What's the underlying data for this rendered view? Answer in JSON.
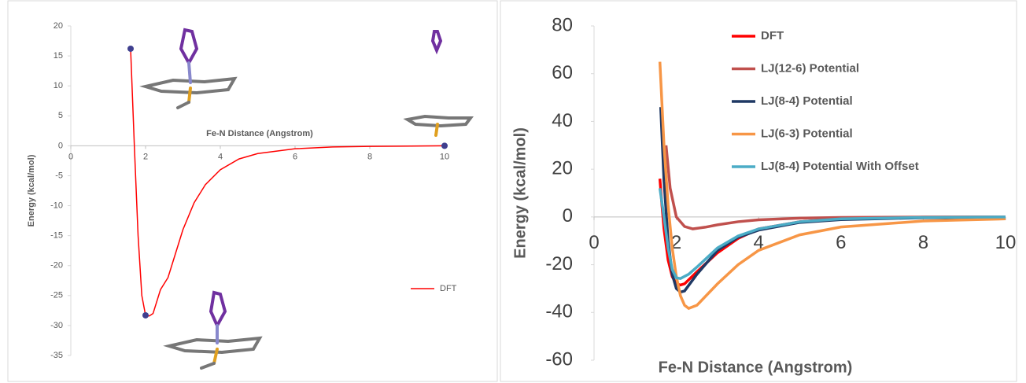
{
  "chart_data": [
    {
      "type": "line",
      "x_label": "Fe-N Distance (Angstrom)",
      "y_label": "Energy (kcal/mol)",
      "xlim": [
        0,
        10
      ],
      "ylim": [
        -35,
        20
      ],
      "xticks": [
        0,
        2,
        4,
        6,
        8,
        10
      ],
      "yticks": [
        -35,
        -30,
        -25,
        -20,
        -15,
        -10,
        -5,
        0,
        5,
        10,
        15,
        20
      ],
      "legend": "right",
      "series": [
        {
          "name": "DFT",
          "color": "#ff0000",
          "x": [
            1.6,
            1.7,
            1.8,
            1.9,
            2.0,
            2.1,
            2.2,
            2.4,
            2.6,
            2.8,
            3.0,
            3.3,
            3.6,
            4.0,
            4.5,
            5.0,
            6.0,
            7.0,
            8.0,
            10.0
          ],
          "values": [
            16.2,
            0,
            -15,
            -25,
            -28.3,
            -28.4,
            -28,
            -24,
            -22,
            -18,
            -14,
            -9.5,
            -6.5,
            -4,
            -2.2,
            -1.3,
            -0.5,
            -0.2,
            -0.1,
            0
          ]
        }
      ],
      "markers": {
        "color": "#3f3f8f",
        "x": [
          1.6,
          2.0,
          10.0
        ],
        "values": [
          16.2,
          -28.3,
          0
        ]
      }
    },
    {
      "type": "line",
      "x_label": "Fe-N Distance (Angstrom)",
      "y_label": "Energy (kcal/mol)",
      "xlim": [
        0,
        10
      ],
      "ylim": [
        -60,
        80
      ],
      "xticks": [
        0,
        2,
        4,
        6,
        8,
        10
      ],
      "yticks": [
        -60,
        -40,
        -20,
        0,
        20,
        40,
        60,
        80
      ],
      "legend": "top",
      "series": [
        {
          "name": "DFT",
          "color": "#ff0000",
          "x": [
            1.6,
            1.65,
            1.7,
            1.8,
            1.9,
            2.0,
            2.1,
            2.2,
            2.5,
            3.0,
            3.5,
            4.0,
            5.0,
            6.0,
            8.0,
            10.0
          ],
          "values": [
            16,
            5,
            -5,
            -18,
            -25,
            -28,
            -28.5,
            -28,
            -23,
            -15,
            -9,
            -5,
            -2,
            -0.7,
            -0.1,
            0
          ]
        },
        {
          "name": "LJ(12-6) Potential",
          "color": "#c0504d",
          "x": [
            1.75,
            1.85,
            2.0,
            2.2,
            2.4,
            2.7,
            3.0,
            3.5,
            4.0,
            5.0,
            6.0,
            8.0,
            10.0
          ],
          "values": [
            30,
            12,
            0,
            -4,
            -5,
            -4.3,
            -3.3,
            -2,
            -1.2,
            -0.5,
            -0.2,
            -0.05,
            0
          ]
        },
        {
          "name": "LJ(8-4) Potential",
          "color": "#1f3864",
          "x": [
            1.62,
            1.7,
            1.8,
            1.9,
            2.0,
            2.1,
            2.2,
            2.5,
            3.0,
            3.5,
            4.0,
            5.0,
            6.0,
            8.0,
            10.0
          ],
          "values": [
            46,
            15,
            -10,
            -24,
            -30,
            -31.5,
            -31,
            -24,
            -14,
            -8.5,
            -5.5,
            -2.3,
            -1.1,
            -0.35,
            -0.15
          ]
        },
        {
          "name": "LJ(6-3) Potential",
          "color": "#f79646",
          "x": [
            1.6,
            1.7,
            1.8,
            1.9,
            2.0,
            2.1,
            2.2,
            2.3,
            2.5,
            3.0,
            3.5,
            4.0,
            5.0,
            6.0,
            8.0,
            10.0
          ],
          "values": [
            65,
            30,
            5,
            -13,
            -25,
            -33,
            -37,
            -38.3,
            -37,
            -28,
            -20,
            -14,
            -7.5,
            -4.2,
            -1.7,
            -0.8
          ]
        },
        {
          "name": "LJ(8-4) Potential With Offset",
          "color": "#4bacc6",
          "x": [
            1.6,
            1.7,
            1.8,
            1.9,
            2.0,
            2.1,
            2.3,
            2.5,
            3.0,
            3.5,
            4.0,
            5.0,
            6.0,
            8.0,
            10.0
          ],
          "values": [
            12,
            0,
            -13,
            -22,
            -25.5,
            -25.8,
            -24,
            -21,
            -13,
            -8,
            -5,
            -2,
            -0.8,
            -0.2,
            0
          ]
        }
      ]
    }
  ]
}
